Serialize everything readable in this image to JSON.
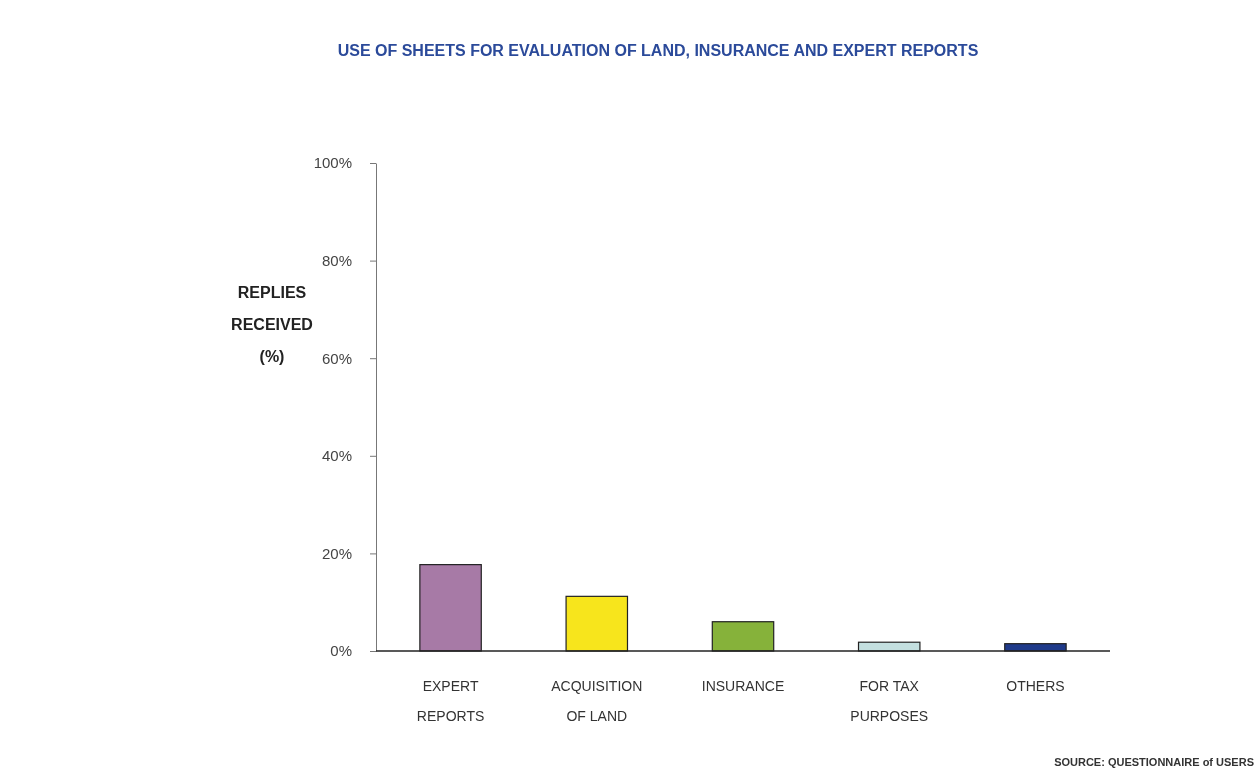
{
  "chart_data": {
    "type": "bar",
    "title": "USE OF SHEETS FOR EVALUATION OF LAND, INSURANCE AND EXPERT REPORTS",
    "ylabel": "REPLIES\nRECEIVED\n(%)",
    "categories": [
      "EXPERT\nREPORTS",
      "ACQUISITION\nOF LAND",
      "INSURANCE",
      "FOR TAX\nPURPOSES",
      "OTHERS"
    ],
    "values": [
      17.7,
      11.2,
      6.0,
      1.8,
      1.5
    ],
    "colors": [
      "#a77aa6",
      "#f7e51c",
      "#86b23a",
      "#c3dfdf",
      "#1f3a8a"
    ],
    "ylim": [
      0,
      100
    ],
    "yticks": [
      {
        "value": 0,
        "label": "0%"
      },
      {
        "value": 20,
        "label": "20%"
      },
      {
        "value": 40,
        "label": "40%"
      },
      {
        "value": 60,
        "label": "60%"
      },
      {
        "value": 80,
        "label": "80%"
      },
      {
        "value": 100,
        "label": "100%"
      }
    ],
    "grid": false,
    "annotations": [
      "SOURCE: QUESTIONNAIRE of USERS"
    ]
  }
}
